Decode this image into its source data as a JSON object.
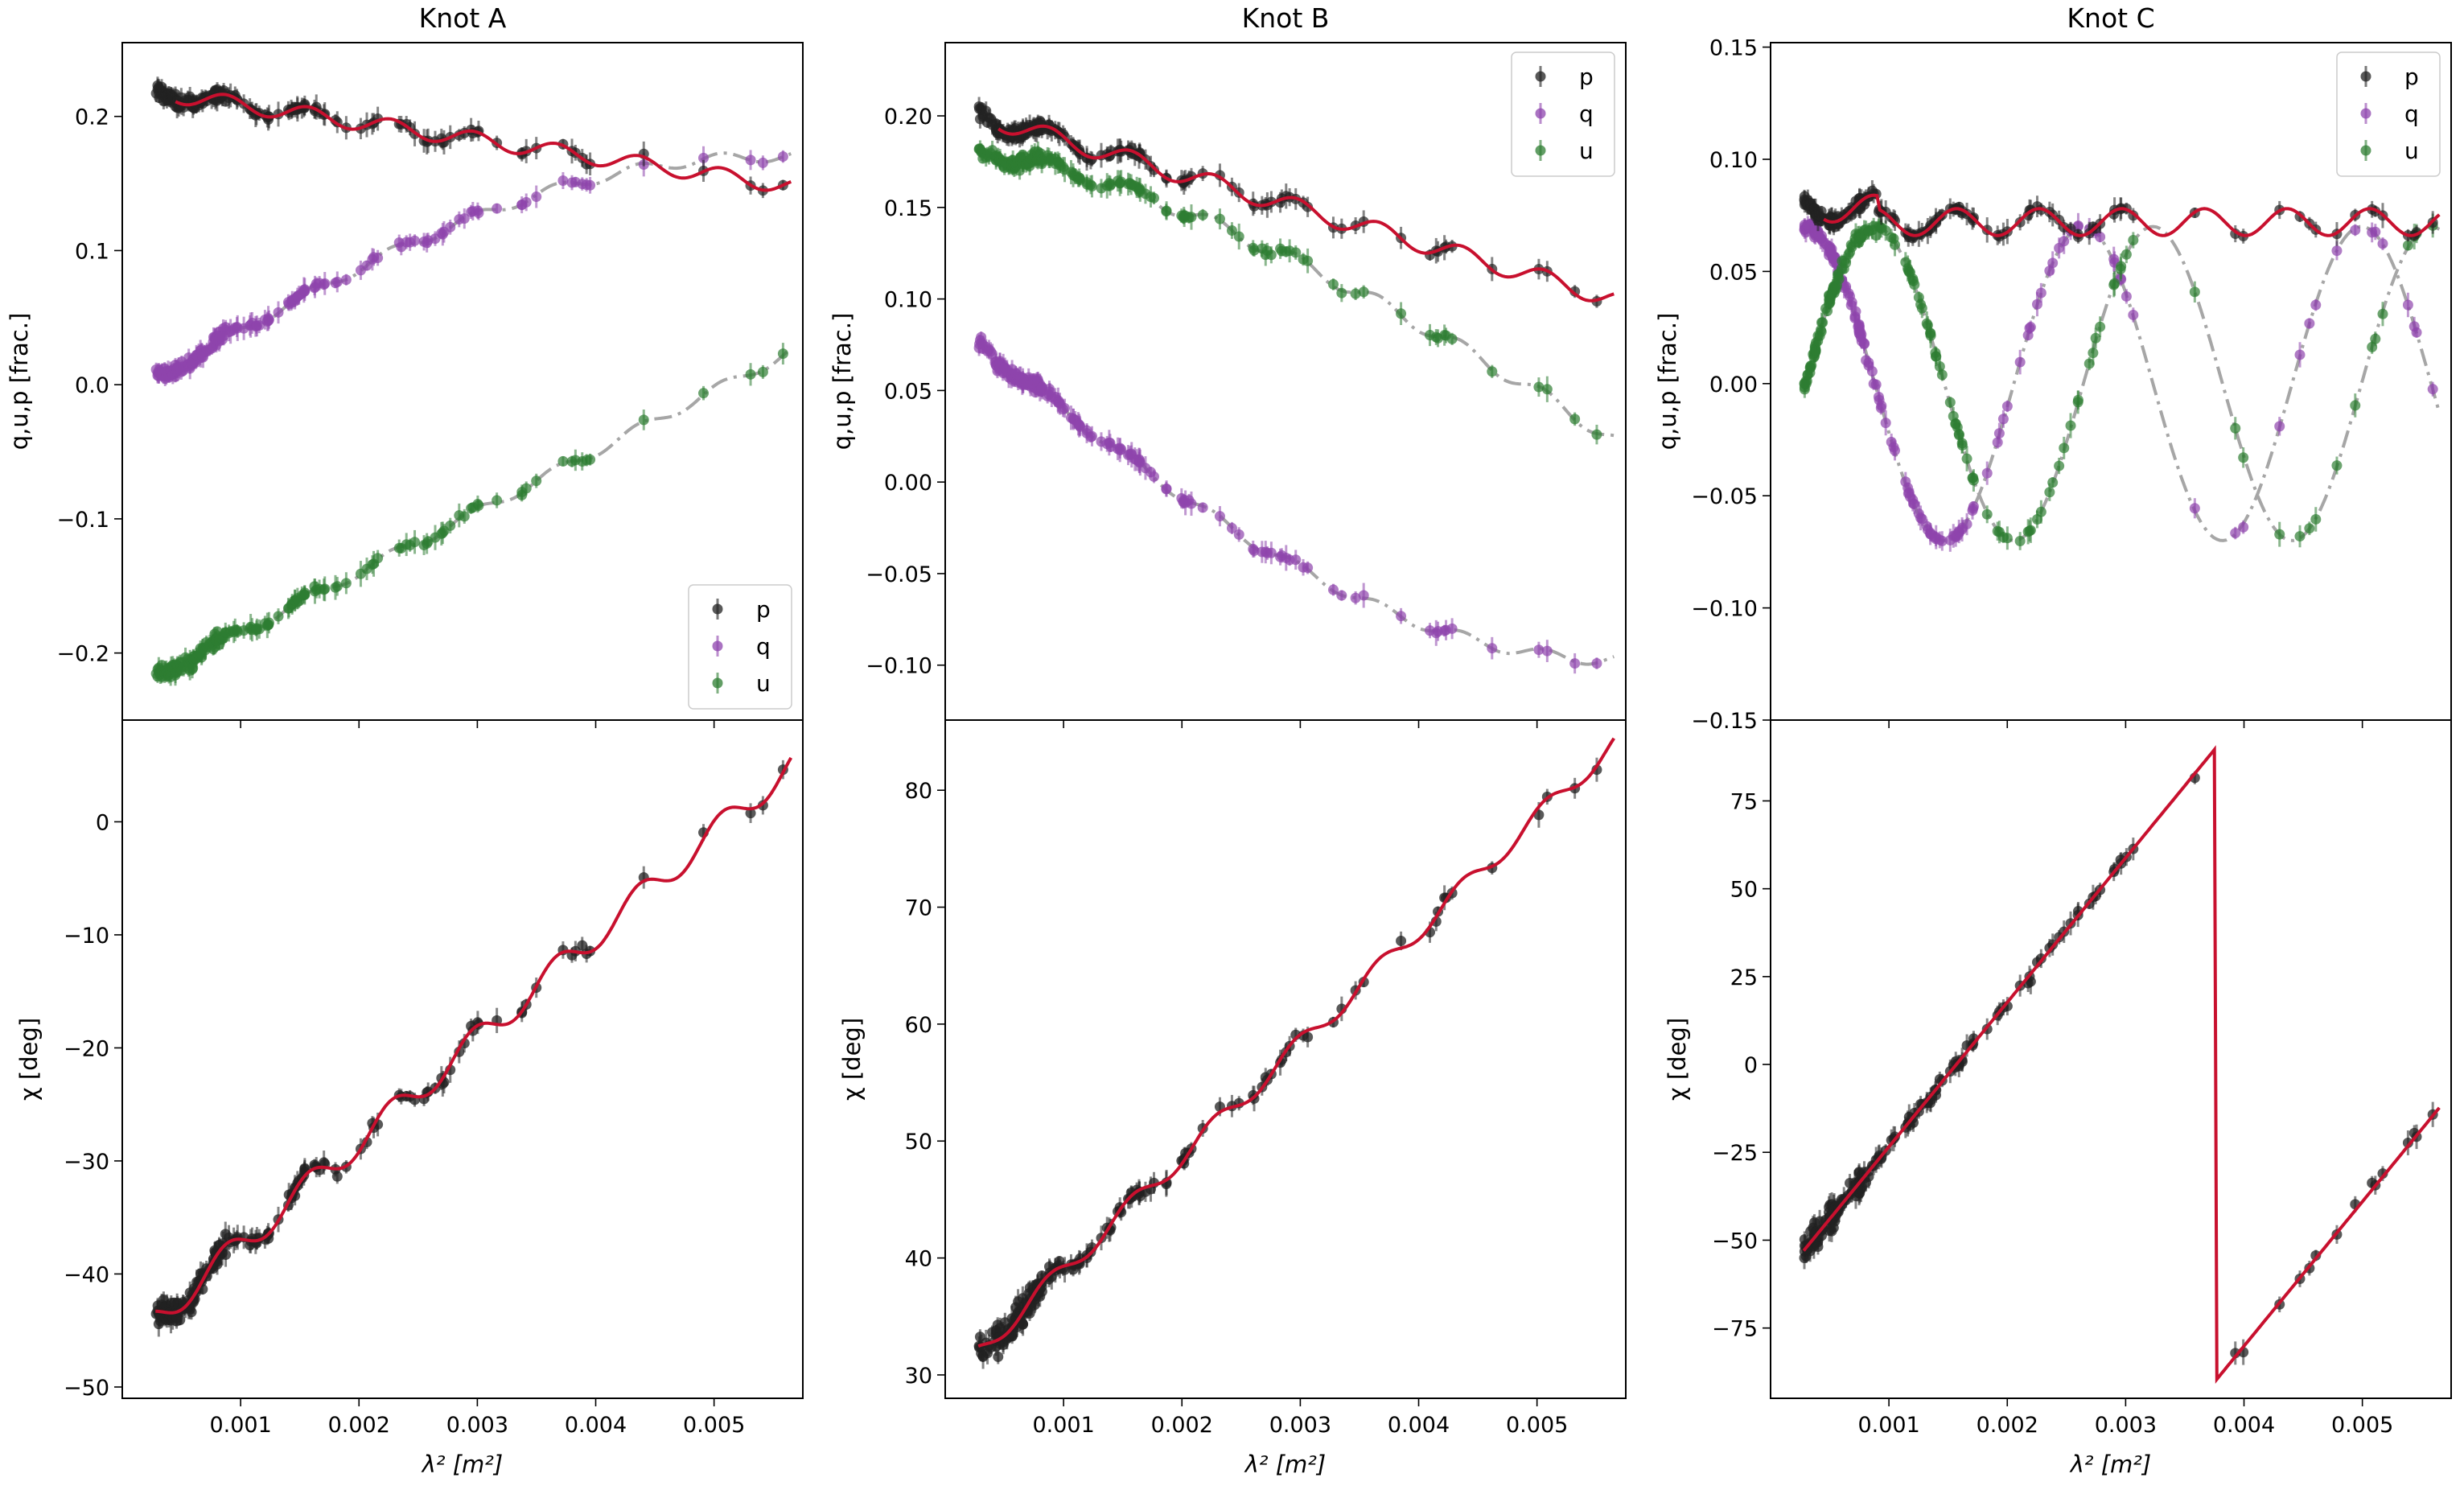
{
  "colors": {
    "p": "#222222",
    "q": "#8e44ad",
    "u": "#2e7d32",
    "model_p": "#c8102e",
    "model_qu": "#a6a6a6"
  },
  "chart_data": [
    {
      "type": "scatter",
      "title": "Knot A",
      "xlabel": "λ² [m²]",
      "ylabel_top": "q,u,p [frac.]",
      "ylabel_bottom": "χ [deg]",
      "xlim": [
        0.0,
        0.00575
      ],
      "ylim_top": [
        -0.25,
        0.255
      ],
      "ylim_bottom": [
        -51,
        9
      ],
      "xticks": [
        "0.001",
        "0.002",
        "0.003",
        "0.004",
        "0.005"
      ],
      "xtick_values": [
        0.001,
        0.002,
        0.003,
        0.004,
        0.005
      ],
      "yticks_top": [
        "−0.2",
        "−0.1",
        "0.0",
        "0.1",
        "0.2"
      ],
      "ytick_values_top": [
        -0.2,
        -0.1,
        0.0,
        0.1,
        0.2
      ],
      "yticks_bottom": [
        "−50",
        "−40",
        "−30",
        "−20",
        "−10",
        "0"
      ],
      "ytick_values_bottom": [
        -50,
        -40,
        -30,
        -20,
        -10,
        0
      ],
      "legend": {
        "position": "bottom-right",
        "entries": [
          "p",
          "q",
          "u"
        ]
      },
      "p": {
        "start": 0.218,
        "end": 0.148,
        "ripple": 0.006
      },
      "q": {
        "start": 0.005,
        "end": 0.17,
        "ripple": 0.004
      },
      "u": {
        "start": -0.217,
        "end": 0.025,
        "ripple": 0.004
      },
      "chi": {
        "start": -44,
        "end": 5,
        "ripple": 1.2
      }
    },
    {
      "type": "scatter",
      "title": "Knot B",
      "xlabel": "λ² [m²]",
      "ylabel_top": "q,u,p [frac.]",
      "ylabel_bottom": "χ [deg]",
      "xlim": [
        0.0,
        0.00575
      ],
      "ylim_top": [
        -0.13,
        0.24
      ],
      "ylim_bottom": [
        28,
        86
      ],
      "xticks": [
        "0.001",
        "0.002",
        "0.003",
        "0.004",
        "0.005"
      ],
      "xtick_values": [
        0.001,
        0.002,
        0.003,
        0.004,
        0.005
      ],
      "yticks_top": [
        "−0.10",
        "−0.05",
        "0.00",
        "0.05",
        "0.10",
        "0.15",
        "0.20"
      ],
      "ytick_values_top": [
        -0.1,
        -0.05,
        0.0,
        0.05,
        0.1,
        0.15,
        0.2
      ],
      "yticks_bottom": [
        "30",
        "40",
        "50",
        "60",
        "70",
        "80"
      ],
      "ytick_values_bottom": [
        30,
        40,
        50,
        60,
        70,
        80
      ],
      "legend": {
        "position": "top-right",
        "entries": [
          "p",
          "q",
          "u"
        ]
      },
      "p": {
        "start": 0.2,
        "end": 0.1,
        "ripple": 0.005
      },
      "q": {
        "start": 0.075,
        "end": -0.097,
        "ripple": 0.003
      },
      "u": {
        "start": 0.18,
        "end": 0.022,
        "ripple": 0.004
      },
      "chi": {
        "start": 32,
        "end": 84,
        "ripple": 0.8
      }
    },
    {
      "type": "scatter",
      "title": "Knot C",
      "xlabel": "λ² [m²]",
      "ylabel_top": "q,u,p [frac.]",
      "ylabel_bottom": "χ [deg]",
      "xlim": [
        0.0,
        0.00575
      ],
      "ylim_top": [
        -0.15,
        0.152
      ],
      "ylim_bottom": [
        -95,
        98
      ],
      "xticks": [
        "0.001",
        "0.002",
        "0.003",
        "0.004",
        "0.005"
      ],
      "xtick_values": [
        0.001,
        0.002,
        0.003,
        0.004,
        0.005
      ],
      "yticks_top": [
        "−0.15",
        "−0.10",
        "−0.05",
        "0.00",
        "0.05",
        "0.10",
        "0.15"
      ],
      "ytick_values_top": [
        -0.15,
        -0.1,
        -0.05,
        0.0,
        0.05,
        0.1,
        0.15
      ],
      "yticks_bottom": [
        "−75",
        "−50",
        "−25",
        "0",
        "25",
        "50",
        "75"
      ],
      "ytick_values_bottom": [
        -75,
        -50,
        -25,
        0,
        25,
        50,
        75
      ],
      "legend": {
        "position": "top-right",
        "entries": [
          "p",
          "q",
          "u"
        ]
      },
      "p": {
        "level": 0.072,
        "ripple": 0.006
      },
      "q": {
        "amplitude": 0.07,
        "phase_offset": -0.25
      },
      "u": {
        "amplitude": 0.07,
        "phase_offset": -1.82
      },
      "chi": {
        "start": -53,
        "wrap_at": 90,
        "wrap_x": 0.00376,
        "end": -10
      }
    }
  ]
}
